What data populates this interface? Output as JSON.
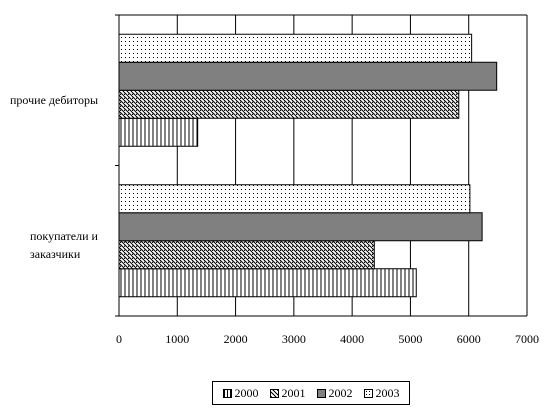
{
  "chart_data": {
    "type": "bar",
    "orientation": "horizontal",
    "categories": [
      "прочие дебиторы",
      "покупатели и заказчики"
    ],
    "series": [
      {
        "name": "2000",
        "values": [
          1350,
          5100
        ],
        "pattern": "vertical-lines"
      },
      {
        "name": "2001",
        "values": [
          5830,
          4380
        ],
        "pattern": "diagonal-lines"
      },
      {
        "name": "2002",
        "values": [
          6480,
          6230
        ],
        "pattern": "solid-gray"
      },
      {
        "name": "2003",
        "values": [
          6050,
          6020
        ],
        "pattern": "dots"
      }
    ],
    "x_ticks": [
      "0",
      "1000",
      "2000",
      "3000",
      "4000",
      "5000",
      "6000",
      "7000"
    ],
    "xlim": [
      0,
      7000
    ],
    "grid": "vertical",
    "legend_position": "bottom",
    "colors": {
      "bar_fill_solid": "#808080",
      "pattern_ink": "#000000",
      "background": "#ffffff"
    }
  }
}
